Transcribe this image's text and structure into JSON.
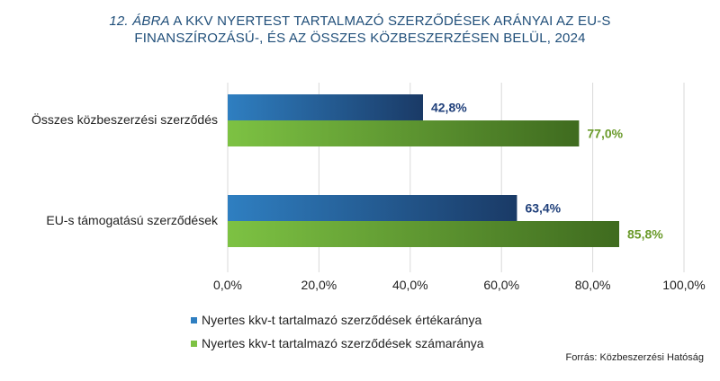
{
  "title": {
    "number": "12. ÁBRA",
    "line1_rest": " A KKV NYERTEST TARTALMAZÓ SZERZŐDÉSEK ARÁNYAI AZ EU-S",
    "line2": "FINANSZÍROZÁSÚ-, ÉS AZ ÖSSZES KÖZBESZERZÉSEN BELÜL, 2024"
  },
  "colors": {
    "series1_light": "#2f7fc1",
    "series1_dark": "#1a3a66",
    "series2_light": "#7dc243",
    "series2_dark": "#3f6b1f",
    "title": "#1f4e79",
    "label1": "#1f3f7a",
    "label2": "#6a9a2a"
  },
  "chart_data": {
    "type": "bar",
    "orientation": "horizontal",
    "categories": [
      "Összes közbeszerzési szerződés",
      "EU-s támogatású szerződések"
    ],
    "series": [
      {
        "name": "Nyertes kkv-t tartalmazó szerződések értékaránya",
        "values": [
          42.8,
          63.4
        ],
        "labels": [
          "42,8%",
          "63,4%"
        ]
      },
      {
        "name": "Nyertes kkv-t tartalmazó szerződések számaránya",
        "values": [
          77.0,
          85.8
        ],
        "labels": [
          "77,0%",
          "85,8%"
        ]
      }
    ],
    "xlim": [
      0,
      100
    ],
    "xticks": [
      0,
      20,
      40,
      60,
      80,
      100
    ],
    "xtick_labels": [
      "0,0%",
      "20,0%",
      "40,0%",
      "60,0%",
      "80,0%",
      "100,0%"
    ],
    "grid": "vertical",
    "legend_position": "bottom-left"
  },
  "source": "Forrás: Közbeszerzési Hatóság"
}
